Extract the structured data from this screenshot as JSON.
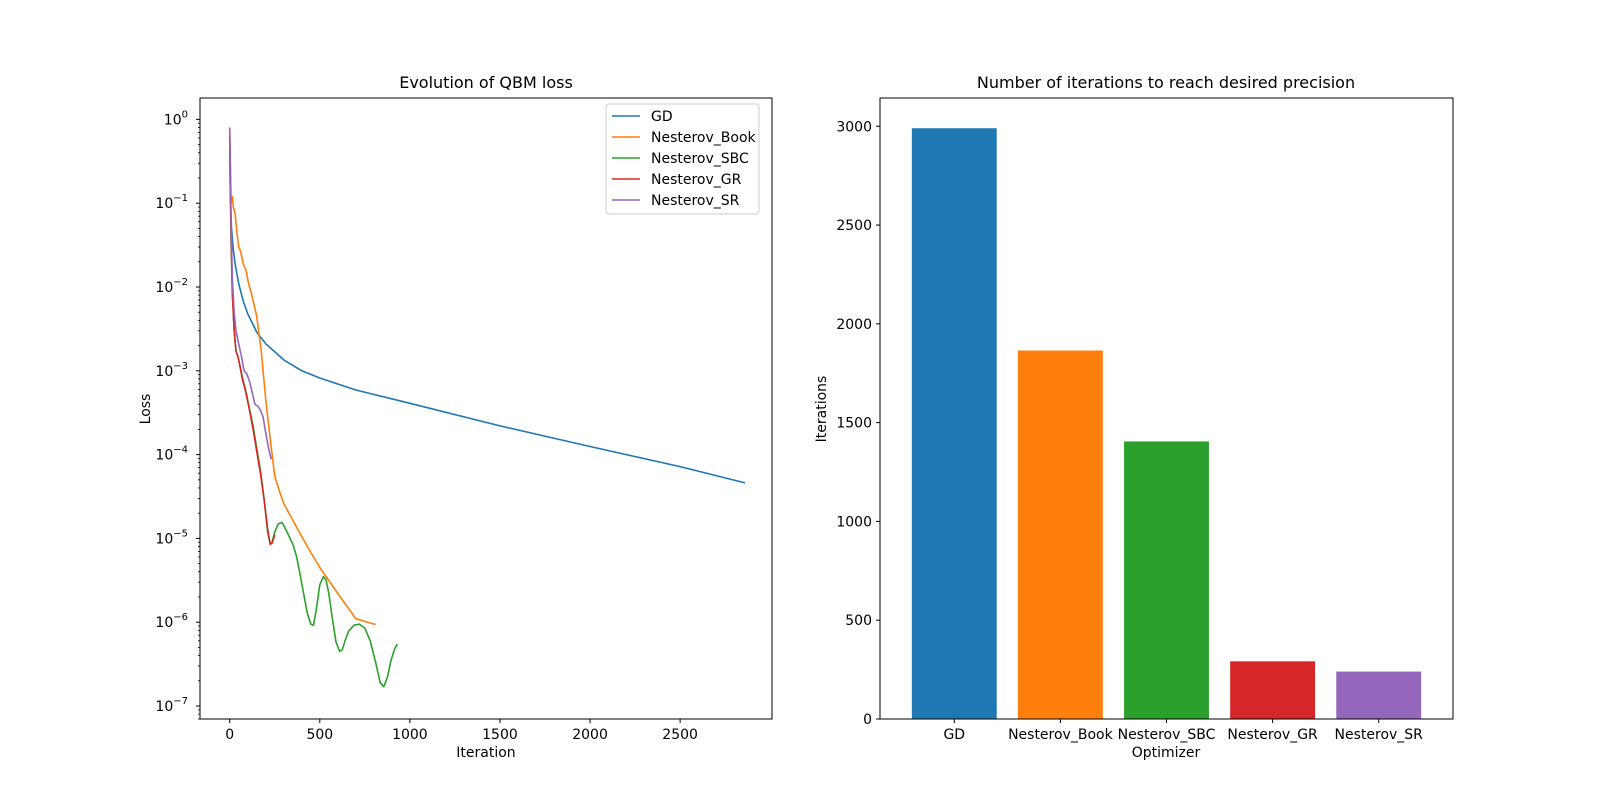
{
  "chart_data": [
    {
      "type": "line",
      "title": "Evolution of QBM loss",
      "xlabel": "Iteration",
      "ylabel": "Loss",
      "xlim": [
        -165,
        3010
      ],
      "ylim": [
        7e-08,
        1.8
      ],
      "yscale": "log",
      "grid": false,
      "legend_position": "top-right",
      "xticks": [
        0,
        500,
        1000,
        1500,
        2000,
        2500
      ],
      "xtick_labels": [
        "0",
        "500",
        "1000",
        "1500",
        "2000",
        "2500"
      ],
      "yticks": [
        1.0,
        0.1,
        0.01,
        0.001,
        0.0001,
        1e-05,
        1e-06,
        1e-07
      ],
      "ytick_labels": [
        {
          "base": "10",
          "exp": "0"
        },
        {
          "base": "10",
          "exp": "−1"
        },
        {
          "base": "10",
          "exp": "−2"
        },
        {
          "base": "10",
          "exp": "−3"
        },
        {
          "base": "10",
          "exp": "−4"
        },
        {
          "base": "10",
          "exp": "−5"
        },
        {
          "base": "10",
          "exp": "−6"
        },
        {
          "base": "10",
          "exp": "−7"
        }
      ],
      "series": [
        {
          "name": "GD",
          "color": "#1f77b4",
          "x": [
            0,
            2,
            5,
            10,
            20,
            30,
            50,
            75,
            100,
            150,
            200,
            300,
            400,
            500,
            700,
            1000,
            1500,
            2000,
            2500,
            2860
          ],
          "y": [
            0.45,
            0.2,
            0.1,
            0.05,
            0.028,
            0.019,
            0.011,
            0.0068,
            0.0048,
            0.0029,
            0.0021,
            0.00135,
            0.001,
            0.00082,
            0.00059,
            0.00041,
            0.00022,
            0.000125,
            7.2e-05,
            4.6e-05
          ]
        },
        {
          "name": "Nesterov_Book",
          "color": "#ff7f0e",
          "x": [
            0,
            3,
            8,
            15,
            20,
            30,
            40,
            50,
            60,
            75,
            90,
            105,
            120,
            135,
            150,
            175,
            200,
            225,
            250,
            275,
            300,
            350,
            400,
            450,
            500,
            600,
            700,
            800,
            810
          ],
          "y": [
            0.8,
            0.3,
            0.1,
            0.12,
            0.09,
            0.075,
            0.045,
            0.03,
            0.027,
            0.019,
            0.016,
            0.011,
            0.0085,
            0.0062,
            0.0045,
            0.0017,
            0.00045,
            0.00015,
            5.5e-05,
            3.7e-05,
            2.6e-05,
            1.65e-05,
            1.05e-05,
            6.8e-06,
            4.5e-06,
            2.2e-06,
            1.1e-06,
            9.5e-07,
            9.5e-07
          ]
        },
        {
          "name": "Nesterov_SBC",
          "color": "#2ca02c",
          "x": [
            0,
            3,
            8,
            15,
            25,
            35,
            45,
            55,
            70,
            90,
            110,
            130,
            150,
            170,
            190,
            210,
            225,
            235,
            250,
            270,
            290,
            310,
            330,
            350,
            370,
            390,
            410,
            430,
            450,
            465,
            480,
            500,
            520,
            535,
            550,
            570,
            590,
            610,
            625,
            640,
            660,
            690,
            720,
            750,
            780,
            810,
            835,
            855,
            875,
            895,
            915,
            930
          ],
          "y": [
            0.6,
            0.15,
            0.03,
            0.008,
            0.003,
            0.0017,
            0.0015,
            0.0012,
            0.00085,
            0.00057,
            0.00035,
            0.00022,
            0.00012,
            6.5e-05,
            3e-05,
            1.2e-05,
            8.5e-06,
            9e-06,
            1.2e-05,
            1.5e-05,
            1.55e-05,
            1.3e-05,
            1.05e-05,
            8.5e-06,
            6.2e-06,
            3.8e-06,
            2.2e-06,
            1.3e-06,
            9.5e-07,
            9.2e-07,
            1.4e-06,
            2.8e-06,
            3.5e-06,
            3.2e-06,
            2.2e-06,
            1.1e-06,
            5.8e-07,
            4.5e-07,
            4.7e-07,
            6e-07,
            7.8e-07,
            9.2e-07,
            9.5e-07,
            8.5e-07,
            6e-07,
            3.3e-07,
            1.9e-07,
            1.7e-07,
            2.2e-07,
            3.5e-07,
            4.8e-07,
            5.5e-07
          ]
        },
        {
          "name": "Nesterov_GR",
          "color": "#d62728",
          "x": [
            0,
            3,
            8,
            15,
            25,
            35,
            45,
            55,
            70,
            90,
            110,
            130,
            150,
            170,
            190,
            210,
            225,
            235,
            250
          ],
          "y": [
            0.65,
            0.18,
            0.035,
            0.008,
            0.003,
            0.0017,
            0.0015,
            0.0012,
            0.0008,
            0.00055,
            0.00034,
            0.0002,
            0.00011,
            6e-05,
            3e-05,
            1.3e-05,
            8.5e-06,
            8.8e-06,
            1.1e-05
          ]
        },
        {
          "name": "Nesterov_SR",
          "color": "#9467bd",
          "x": [
            0,
            3,
            8,
            15,
            25,
            35,
            50,
            65,
            80,
            95,
            110,
            125,
            140,
            155,
            170,
            185,
            200,
            215,
            230
          ],
          "y": [
            0.8,
            0.3,
            0.05,
            0.012,
            0.005,
            0.003,
            0.0021,
            0.0015,
            0.001,
            0.00092,
            0.00075,
            0.00055,
            0.0004,
            0.00038,
            0.00034,
            0.00028,
            0.00018,
            0.00012,
            8.8e-05
          ]
        }
      ]
    },
    {
      "type": "bar",
      "title": "Number of iterations to reach desired precision",
      "xlabel": "Optimizer",
      "ylabel": "Iterations",
      "ylim": [
        0,
        3143
      ],
      "grid": false,
      "yticks": [
        0,
        500,
        1000,
        1500,
        2000,
        2500,
        3000
      ],
      "ytick_labels": [
        "0",
        "500",
        "1000",
        "1500",
        "2000",
        "2500",
        "3000"
      ],
      "categories": [
        "GD",
        "Nesterov_Book",
        "Nesterov_SBC",
        "Nesterov_GR",
        "Nesterov_SR"
      ],
      "values": [
        2990,
        1865,
        1405,
        292,
        240
      ],
      "colors": [
        "#1f77b4",
        "#ff7f0e",
        "#2ca02c",
        "#d62728",
        "#9467bd"
      ]
    }
  ]
}
